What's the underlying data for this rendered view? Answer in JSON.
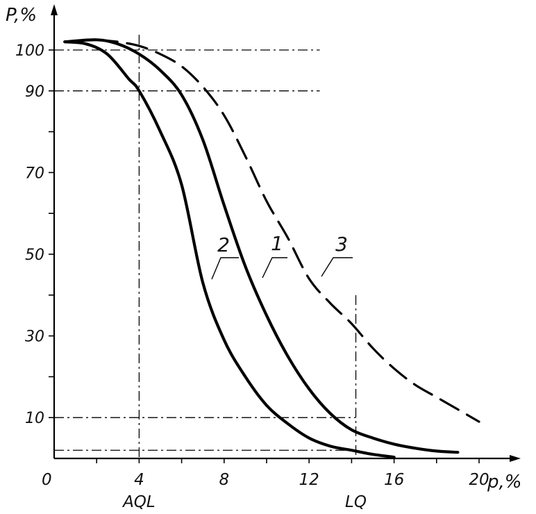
{
  "chart_data": {
    "type": "line",
    "title": "",
    "xlabel": "p,%",
    "ylabel": "P,%",
    "origin_label": "0",
    "xlim": [
      0,
      20
    ],
    "ylim": [
      0,
      100
    ],
    "x_ticks": [
      "4",
      "8",
      "12",
      "16",
      "20"
    ],
    "y_ticks": [
      "100",
      "90",
      "70",
      "50",
      "30",
      "10"
    ],
    "annotations": {
      "aql": {
        "label": "AQL",
        "x": 4
      },
      "lq": {
        "label": "LQ",
        "x": 14.2
      }
    },
    "reference_lines_y": [
      100,
      90,
      10,
      2
    ],
    "grid": false,
    "series": [
      {
        "name": "1",
        "style": "solid",
        "x": [
          0.5,
          2,
          3,
          4,
          5,
          6,
          7,
          8,
          9,
          10,
          11,
          12,
          13,
          14,
          15,
          16,
          17,
          18,
          19
        ],
        "y": [
          102,
          102.5,
          101.5,
          99,
          95,
          89,
          78,
          62,
          47,
          35,
          25,
          17,
          11,
          7,
          5,
          3.5,
          2.5,
          1.8,
          1.5
        ]
      },
      {
        "name": "2",
        "style": "solid",
        "x": [
          0.5,
          1.5,
          2.5,
          3.5,
          4,
          5,
          6,
          7,
          8,
          9,
          10,
          11,
          12,
          13,
          14,
          15,
          16
        ],
        "y": [
          102,
          101.5,
          99,
          93,
          90,
          80,
          67,
          43,
          29,
          20,
          13,
          8.5,
          5,
          3,
          2,
          1,
          0.3
        ]
      },
      {
        "name": "3",
        "style": "dashed",
        "x": [
          2,
          3,
          4,
          5,
          6,
          7,
          8,
          9,
          10,
          11,
          12,
          13,
          14,
          15,
          16,
          17,
          18,
          19,
          20
        ],
        "y": [
          102.5,
          102,
          101,
          99,
          96,
          91,
          84,
          74,
          63,
          54,
          44,
          38,
          33,
          27,
          22,
          18,
          15,
          12,
          9
        ]
      }
    ]
  }
}
